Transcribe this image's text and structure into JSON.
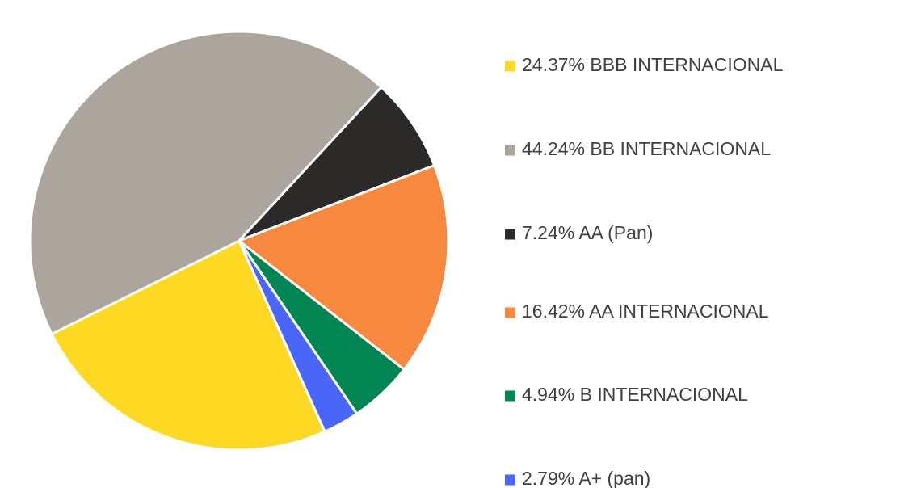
{
  "chart_data": {
    "type": "pie",
    "categories": [
      "BBB INTERNACIONAL",
      "BB INTERNACIONAL",
      "AA (Pan)",
      "AA INTERNACIONAL",
      "B INTERNACIONAL",
      "A+ (pan)"
    ],
    "values": [
      24.37,
      44.24,
      7.24,
      16.42,
      4.94,
      2.79
    ],
    "value_labels": [
      "24.37%",
      "44.24%",
      "7.24%",
      "16.42%",
      "4.94%",
      "2.79%"
    ],
    "colors": [
      "#FDD924",
      "#ABA59E",
      "#2B2A29",
      "#F6893D",
      "#008553",
      "#4A66F6"
    ],
    "legend": "right"
  }
}
